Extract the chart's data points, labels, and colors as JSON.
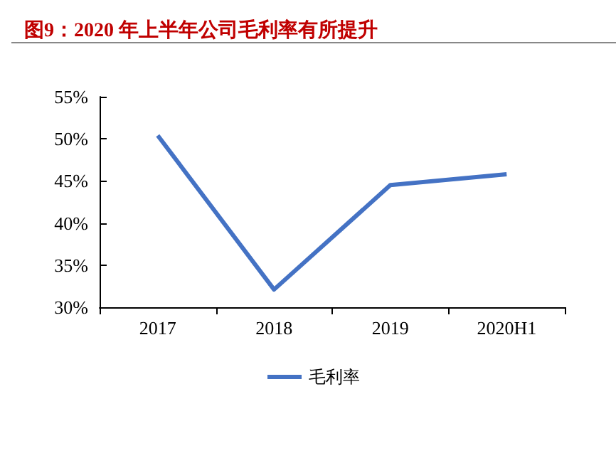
{
  "chart_data": {
    "type": "line",
    "title": "图9：2020 年上半年公司毛利率有所提升",
    "categories": [
      "2017",
      "2018",
      "2019",
      "2020H1"
    ],
    "series": [
      {
        "name": "毛利率",
        "color": "#4472c4",
        "values": [
          50.4,
          32.1,
          44.5,
          45.8
        ]
      }
    ],
    "ylim": [
      30,
      55
    ],
    "yticks": [
      {
        "value": 30,
        "label": "30%"
      },
      {
        "value": 35,
        "label": "35%"
      },
      {
        "value": 40,
        "label": "40%"
      },
      {
        "value": 45,
        "label": "45%"
      },
      {
        "value": 50,
        "label": "50%"
      },
      {
        "value": 55,
        "label": "55%"
      }
    ],
    "grid": false,
    "legend": "bottom",
    "marker": "none",
    "line_style": "solid"
  }
}
